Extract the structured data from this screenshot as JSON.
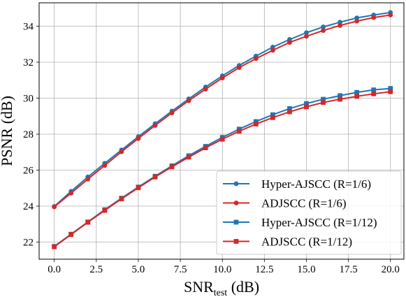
{
  "chart_data": {
    "type": "line",
    "xlabel_main": "SNR",
    "xlabel_sub": "test",
    "xlabel_unit": " (dB)",
    "ylabel": "PSNR (dB)",
    "xlim": [
      -0.9,
      20.8
    ],
    "ylim": [
      21.05,
      35.3
    ],
    "xticks": [
      0,
      2.5,
      5,
      7.5,
      10,
      12.5,
      15,
      17.5,
      20
    ],
    "xtick_labels": [
      "0.0",
      "2.5",
      "5.0",
      "7.5",
      "10.0",
      "12.5",
      "15.0",
      "17.5",
      "20.0"
    ],
    "yticks": [
      22,
      24,
      26,
      28,
      30,
      32,
      34
    ],
    "ytick_labels": [
      "22",
      "24",
      "26",
      "28",
      "30",
      "32",
      "34"
    ],
    "grid": true,
    "legend_position": "lower-right",
    "x": [
      0,
      1,
      2,
      3,
      4,
      5,
      6,
      7,
      8,
      9,
      10,
      11,
      12,
      13,
      14,
      15,
      16,
      17,
      18,
      19,
      20
    ],
    "series": [
      {
        "name": "Hyper-AJSCC (R=1/6)",
        "color": "#1f77b4",
        "marker": "circle",
        "values": [
          23.98,
          24.82,
          25.62,
          26.38,
          27.12,
          27.86,
          28.58,
          29.28,
          29.96,
          30.62,
          31.24,
          31.82,
          32.34,
          32.84,
          33.26,
          33.64,
          33.96,
          34.22,
          34.46,
          34.62,
          34.76
        ]
      },
      {
        "name": "ADJSCC (R=1/6)",
        "color": "#d62728",
        "marker": "circle",
        "values": [
          23.96,
          24.72,
          25.5,
          26.26,
          27.02,
          27.76,
          28.48,
          29.18,
          29.86,
          30.5,
          31.12,
          31.7,
          32.2,
          32.66,
          33.1,
          33.44,
          33.76,
          34.04,
          34.28,
          34.48,
          34.62
        ]
      },
      {
        "name": "Hyper-AJSCC (R=1/12)",
        "color": "#1f77b4",
        "marker": "square",
        "values": [
          21.76,
          22.44,
          23.12,
          23.8,
          24.44,
          25.06,
          25.66,
          26.24,
          26.8,
          27.32,
          27.82,
          28.28,
          28.7,
          29.08,
          29.42,
          29.7,
          29.94,
          30.14,
          30.32,
          30.46,
          30.54
        ]
      },
      {
        "name": "ADJSCC (R=1/12)",
        "color": "#d62728",
        "marker": "square",
        "values": [
          21.74,
          22.42,
          23.1,
          23.76,
          24.4,
          25.02,
          25.62,
          26.18,
          26.72,
          27.24,
          27.72,
          28.16,
          28.56,
          28.92,
          29.24,
          29.52,
          29.76,
          29.94,
          30.1,
          30.24,
          30.36
        ]
      }
    ]
  }
}
